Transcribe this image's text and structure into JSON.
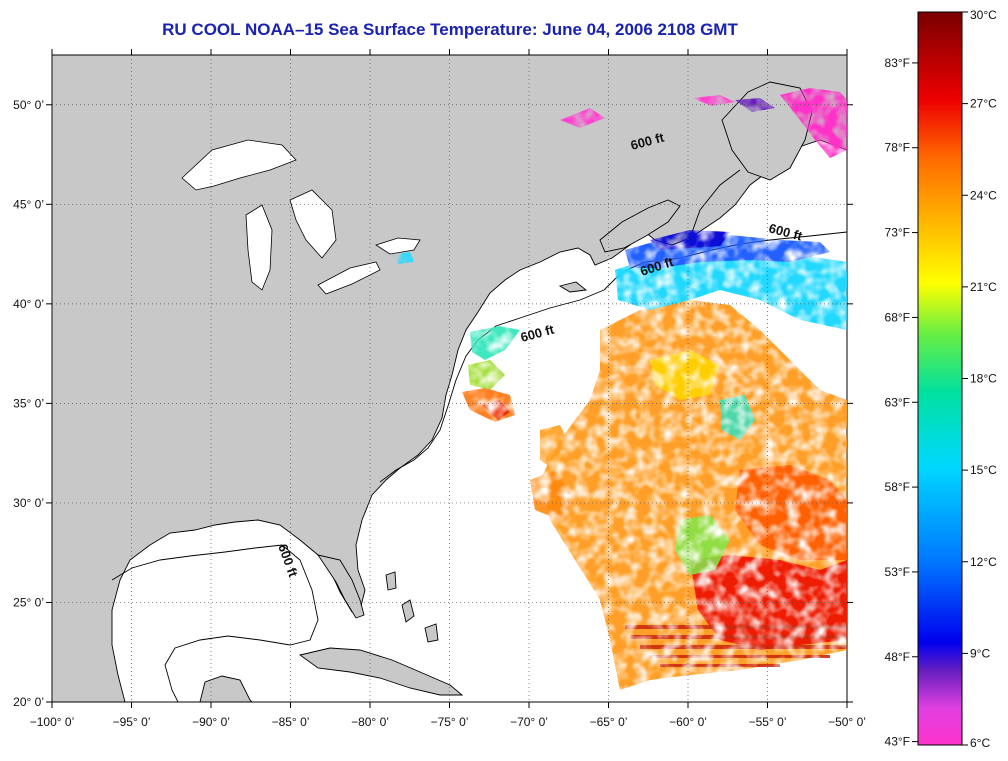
{
  "title": "RU COOL  NOAA–15  Sea Surface Temperature:  June 04, 2006 2108 GMT",
  "map": {
    "lon_range": [
      -100,
      -50
    ],
    "lat_range": [
      20,
      52.5
    ],
    "lon_ticks": [
      "−100° 0’",
      "−95° 0’",
      "−90° 0’",
      "−85° 0’",
      "−80° 0’",
      "−75° 0’",
      "−70° 0’",
      "−65° 0’",
      "−60° 0’",
      "−55° 0’",
      "−50° 0’"
    ],
    "lon_tick_values": [
      -100,
      -95,
      -90,
      -85,
      -80,
      -75,
      -70,
      -65,
      -60,
      -55,
      -50
    ],
    "lat_ticks": [
      "20° 0’",
      "25° 0’",
      "30° 0’",
      "35° 0’",
      "40° 0’",
      "45° 0’",
      "50° 0’"
    ],
    "lat_tick_values": [
      20,
      25,
      30,
      35,
      40,
      45,
      50
    ],
    "contour_labels": [
      "600 ft",
      "600 ft",
      "600 ft",
      "600 ft",
      "600 ft"
    ],
    "land_color": "#c8c8c8",
    "ocean_color": "#ffffff",
    "grid": "dotted"
  },
  "colorbar": {
    "celsius_labels": [
      "30°C",
      "27°C",
      "24°C",
      "21°C",
      "18°C",
      "15°C",
      "12°C",
      "9°C",
      "6°C"
    ],
    "celsius_values": [
      30,
      27,
      24,
      21,
      18,
      15,
      12,
      9,
      6
    ],
    "fahrenheit_labels": [
      "83°F",
      "78°F",
      "73°F",
      "68°F",
      "63°F",
      "58°F",
      "53°F",
      "48°F",
      "43°F"
    ],
    "fahrenheit_values": [
      83,
      78,
      73,
      68,
      63,
      58,
      53,
      48,
      43
    ],
    "range_c": [
      6,
      30
    ],
    "colors": [
      "#ff33cc",
      "#6a1fbf",
      "#0000ee",
      "#0077ff",
      "#00d8ff",
      "#00e0a0",
      "#44e844",
      "#ffff00",
      "#ffb000",
      "#ff6a00",
      "#ee0000",
      "#800000"
    ]
  }
}
